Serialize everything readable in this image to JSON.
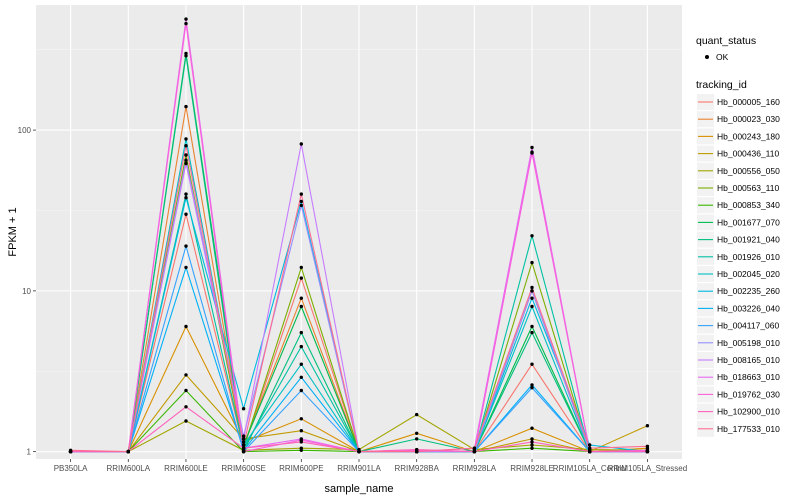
{
  "chart_data": {
    "type": "line",
    "xlabel": "sample_name",
    "ylabel": "FPKM + 1",
    "y_scale": "log10",
    "ylim": [
      0.9,
      600
    ],
    "y_ticks": [
      1,
      10,
      100
    ],
    "grid": true,
    "legend_position": "right",
    "categories": [
      "PB350LA",
      "RRIM600LA",
      "RRIM600LE",
      "RRIM600SE",
      "RRIM600PE",
      "RRIM901LA",
      "RRIM928BA",
      "RRIM928LA",
      "RRIM928LE",
      "RRIM105LA_Control",
      "RRIM105LA_Stressed"
    ],
    "point_legend": {
      "title": "quant_status",
      "entries": [
        "OK"
      ]
    },
    "series_legend_title": "tracking_id",
    "series": [
      {
        "name": "Hb_000005_160",
        "color": "#F8766D",
        "values": [
          1,
          1,
          30,
          1.05,
          12,
          1,
          1,
          1,
          3.5,
          1,
          1
        ]
      },
      {
        "name": "Hb_000023_030",
        "color": "#EA8331",
        "values": [
          1,
          1,
          140,
          1.1,
          9,
          1,
          1,
          1,
          10,
          1,
          1
        ]
      },
      {
        "name": "Hb_000243_180",
        "color": "#D89000",
        "values": [
          1,
          1,
          6,
          1.15,
          1.6,
          1,
          1.3,
          1,
          1.4,
          1,
          1.05
        ]
      },
      {
        "name": "Hb_000436_110",
        "color": "#C09B00",
        "values": [
          1,
          1,
          3,
          1.2,
          1.35,
          1,
          1.02,
          1,
          1.2,
          1,
          1.45
        ]
      },
      {
        "name": "Hb_000556_050",
        "color": "#A3A500",
        "values": [
          1,
          1,
          1.55,
          1.02,
          1.05,
          1.03,
          1.7,
          1.03,
          1.1,
          1.03,
          1.02
        ]
      },
      {
        "name": "Hb_000563_110",
        "color": "#7CAE00",
        "values": [
          1,
          1,
          70,
          1.05,
          14,
          1,
          1,
          1,
          15,
          1,
          1
        ]
      },
      {
        "name": "Hb_000853_340",
        "color": "#39B600",
        "values": [
          1,
          1,
          2.4,
          1,
          1.02,
          1,
          1,
          1,
          1.05,
          1,
          1
        ]
      },
      {
        "name": "Hb_001677_070",
        "color": "#00BB4E",
        "values": [
          1,
          1,
          300,
          1.1,
          8,
          1,
          1,
          1,
          6,
          1,
          1
        ]
      },
      {
        "name": "Hb_001921_040",
        "color": "#00BF7D",
        "values": [
          1,
          1,
          290,
          1,
          5.5,
          1,
          1.2,
          1,
          5.5,
          1,
          1
        ]
      },
      {
        "name": "Hb_001926_010",
        "color": "#00C1A3",
        "values": [
          1,
          1,
          40,
          1.05,
          4.5,
          1,
          1,
          1,
          22,
          1,
          1
        ]
      },
      {
        "name": "Hb_002045_020",
        "color": "#00BFC4",
        "values": [
          1,
          1,
          88,
          1.1,
          3.5,
          1,
          1,
          1,
          8,
          1,
          1
        ]
      },
      {
        "name": "Hb_002235_260",
        "color": "#00BAE0",
        "values": [
          1,
          1,
          38,
          1.85,
          36,
          1,
          1,
          1,
          9,
          1.1,
          1
        ]
      },
      {
        "name": "Hb_003226_040",
        "color": "#00B0F6",
        "values": [
          1,
          1,
          14,
          1.02,
          2.9,
          1,
          1,
          1,
          2.6,
          1,
          1
        ]
      },
      {
        "name": "Hb_004117_060",
        "color": "#35A2FF",
        "values": [
          1,
          1,
          19,
          1,
          2.4,
          1,
          1,
          1,
          2.5,
          1,
          1
        ]
      },
      {
        "name": "Hb_005198_010",
        "color": "#9590FF",
        "values": [
          1,
          1,
          65,
          1.25,
          34,
          1,
          1,
          1,
          10,
          1,
          1
        ]
      },
      {
        "name": "Hb_008165_010",
        "color": "#C77CFF",
        "values": [
          1,
          1,
          62,
          1.2,
          82,
          1,
          1,
          1,
          73,
          1,
          1
        ]
      },
      {
        "name": "Hb_018663_010",
        "color": "#E76BF3",
        "values": [
          1,
          1,
          490,
          1.05,
          1.2,
          1,
          1,
          1.05,
          78,
          1,
          1
        ]
      },
      {
        "name": "Hb_019762_030",
        "color": "#FA62DB",
        "values": [
          1,
          1,
          460,
          1,
          1.18,
          1,
          1.02,
          1,
          72,
          1,
          1.02
        ]
      },
      {
        "name": "Hb_102900_010",
        "color": "#FF62BC",
        "values": [
          1,
          1,
          1.9,
          1.05,
          1.15,
          1,
          1.03,
          1,
          1.15,
          1,
          1
        ]
      },
      {
        "name": "Hb_177533_010",
        "color": "#FF6C91",
        "values": [
          1.02,
          1,
          80,
          1.1,
          40,
          1,
          1,
          1.05,
          10.5,
          1.05,
          1.08
        ]
      }
    ]
  }
}
